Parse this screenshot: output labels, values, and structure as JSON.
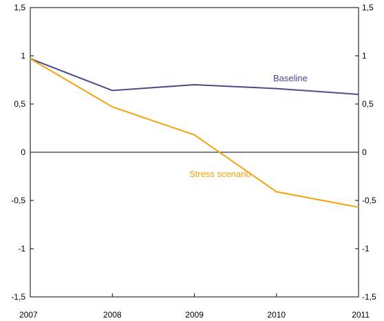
{
  "chart_data": {
    "type": "line",
    "x": [
      "2007",
      "2008",
      "2009",
      "2010",
      "2011"
    ],
    "series": [
      {
        "name": "Baseline",
        "values": [
          0.97,
          0.64,
          0.7,
          0.66,
          0.6
        ],
        "color": "#4a4a8c"
      },
      {
        "name": "Stress scenario",
        "values": [
          0.97,
          0.47,
          0.18,
          -0.41,
          -0.57
        ],
        "color": "#f5a20a"
      }
    ],
    "ylim": [
      -1.5,
      1.5
    ],
    "y_ticks": [
      "1,5",
      "1",
      "0,5",
      "0",
      "-0,5",
      "-1",
      "-1,5"
    ],
    "y_tick_values": [
      1.5,
      1,
      0.5,
      0,
      -0.5,
      -1,
      -1.5
    ],
    "x_ticks": [
      "2007",
      "2008",
      "2009",
      "2010",
      "2011"
    ],
    "zero_line": true,
    "grid": false,
    "dual_y_axis": true
  }
}
